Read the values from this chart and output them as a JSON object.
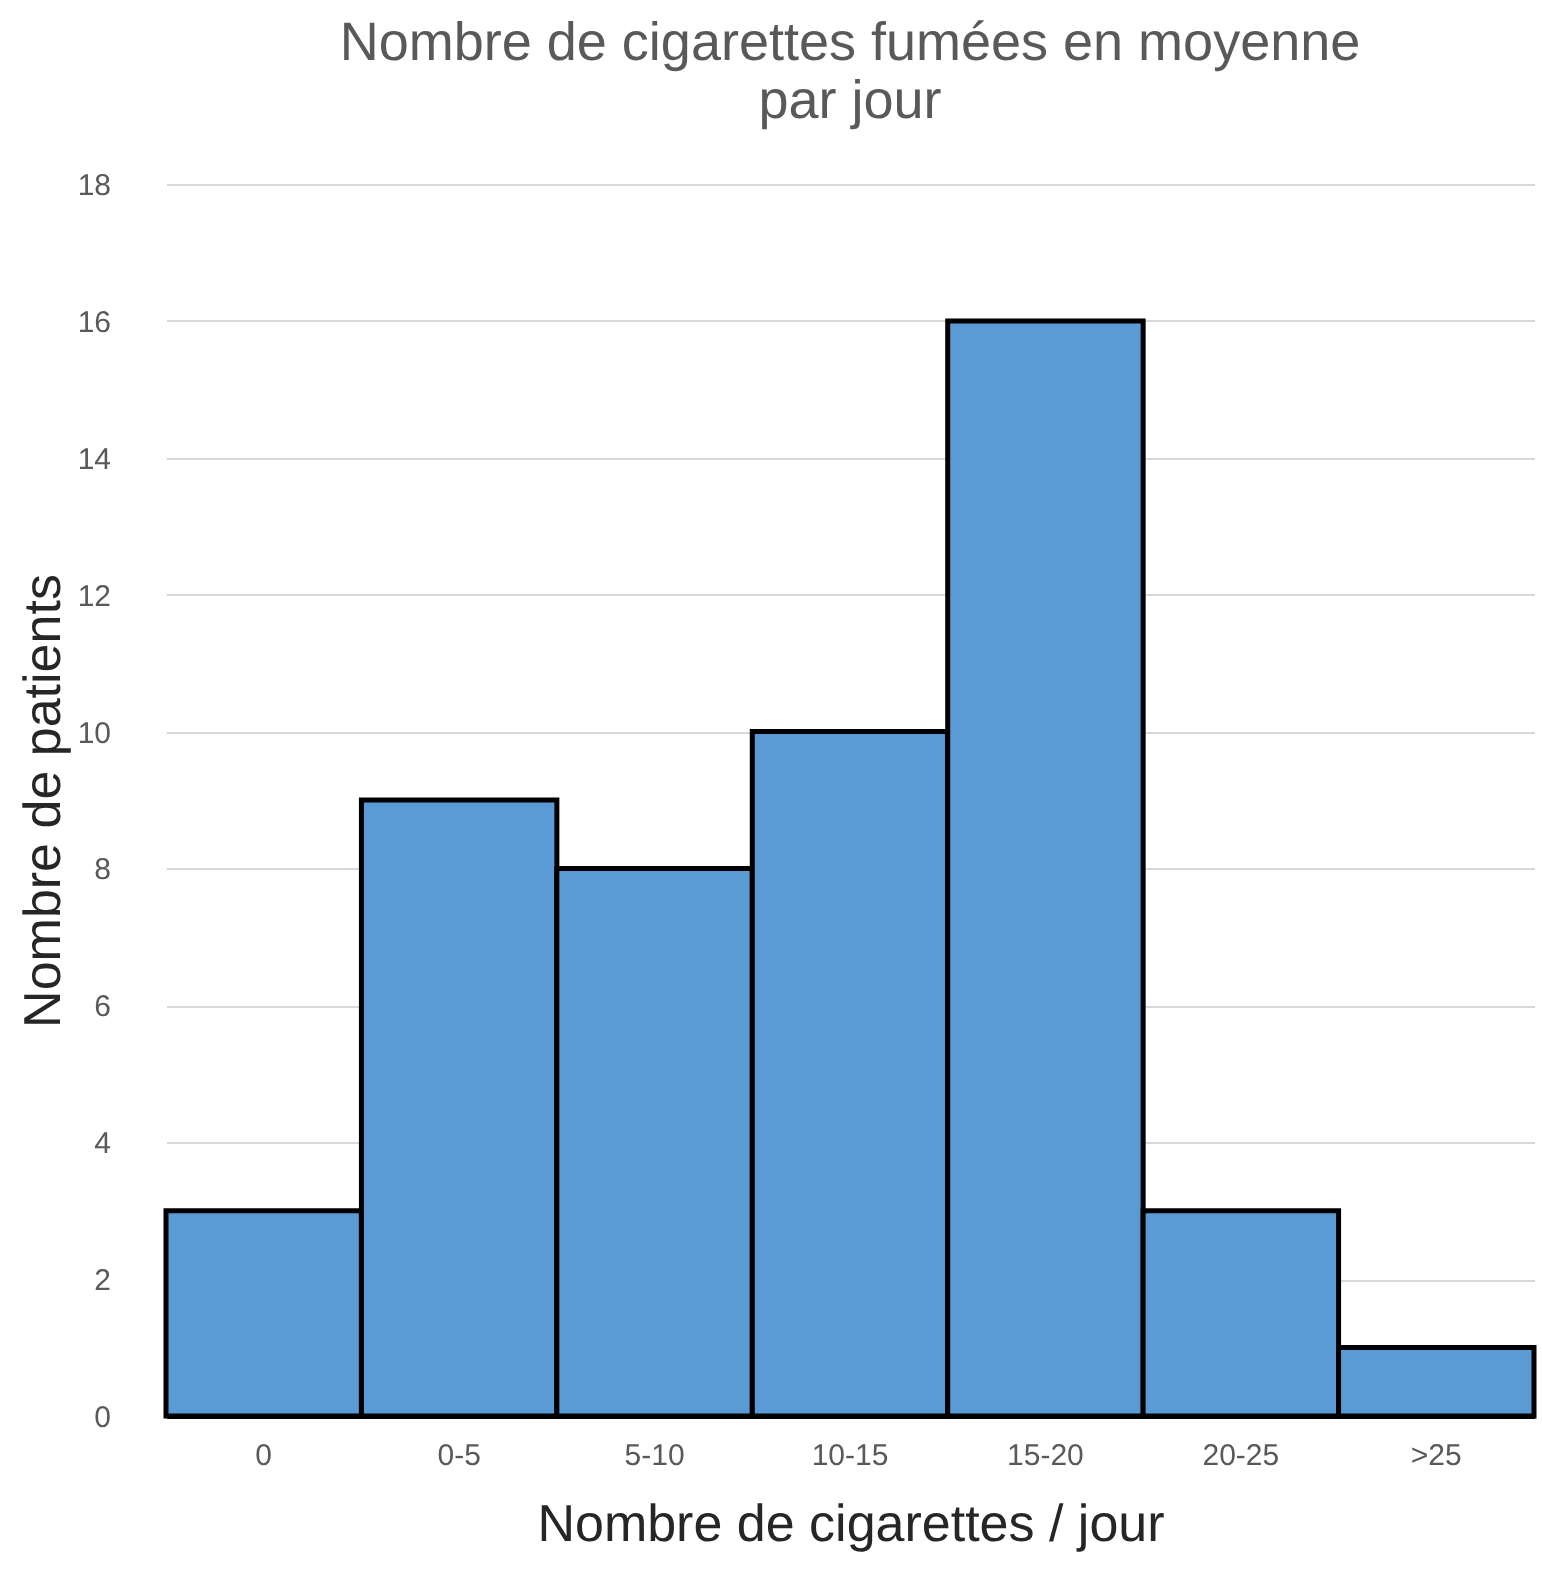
{
  "chart_data": {
    "type": "bar",
    "title": [
      "Nombre de cigarettes fumées en moyenne",
      "par jour"
    ],
    "xlabel": "Nombre de cigarettes / jour",
    "ylabel": "Nombre de patients",
    "categories": [
      "0",
      "0-5",
      "5-10",
      "10-15",
      "15-20",
      "20-25",
      ">25"
    ],
    "values": [
      3,
      9,
      8,
      10,
      16,
      3,
      1
    ],
    "color": "#5b9bd5",
    "ylim": [
      0,
      18
    ],
    "yticks": [
      0,
      2,
      4,
      6,
      8,
      10,
      12,
      14,
      16,
      18
    ],
    "grid": "y"
  }
}
